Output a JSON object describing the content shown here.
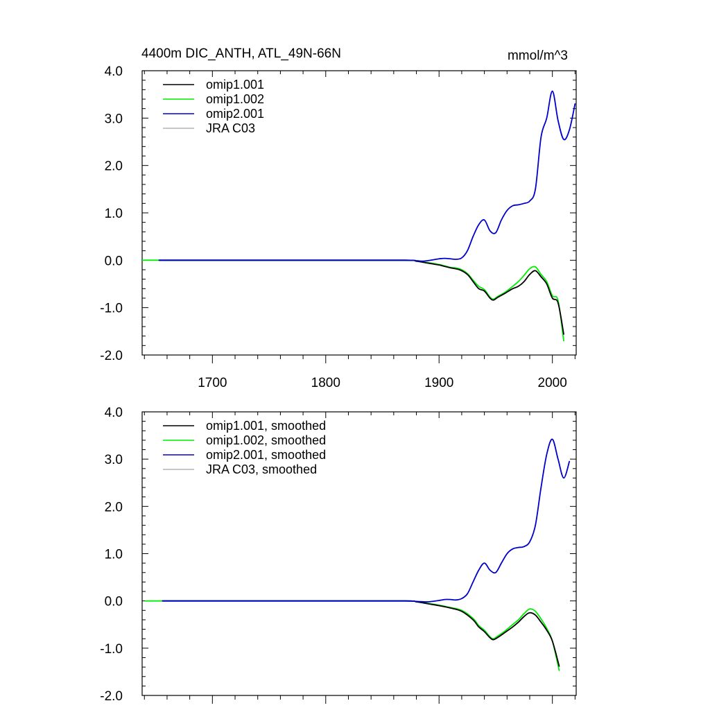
{
  "figure": {
    "title": "4400m DIC_ANTH, ATL_49N-66N",
    "units": "mmol/m^3"
  },
  "chart_data": [
    {
      "type": "line",
      "xlim": [
        1638,
        2021
      ],
      "ylim": [
        -2.0,
        4.0
      ],
      "x_ticks": [
        1700,
        1800,
        1900,
        2000
      ],
      "x_tick_labels": [
        "1700",
        "1800",
        "1900",
        "2000"
      ],
      "y_ticks": [
        4.0,
        3.0,
        2.0,
        1.0,
        0.0,
        -1.0,
        -2.0
      ],
      "y_tick_labels": [
        "4.0",
        "3.0",
        "2.0",
        "1.0",
        "0.0",
        "-1.0",
        "-2.0"
      ],
      "legend_placement": "top-left",
      "grid": false,
      "series": [
        {
          "name": "omip1.001",
          "color": "#000000",
          "x": [
            1653,
            1700,
            1800,
            1870,
            1880,
            1890,
            1900,
            1905,
            1910,
            1918,
            1925,
            1930,
            1935,
            1940,
            1945,
            1948,
            1952,
            1958,
            1965,
            1970,
            1975,
            1980,
            1985,
            1990,
            1995,
            2000,
            2005,
            2010
          ],
          "y": [
            0.0,
            0.0,
            0.0,
            0.0,
            -0.02,
            -0.06,
            -0.1,
            -0.13,
            -0.16,
            -0.2,
            -0.3,
            -0.45,
            -0.6,
            -0.65,
            -0.8,
            -0.84,
            -0.78,
            -0.7,
            -0.6,
            -0.55,
            -0.45,
            -0.3,
            -0.22,
            -0.35,
            -0.5,
            -0.8,
            -0.9,
            -1.56
          ]
        },
        {
          "name": "omip1.002",
          "color": "#00ee00",
          "x": [
            1638,
            1700,
            1800,
            1870,
            1880,
            1890,
            1900,
            1905,
            1910,
            1918,
            1925,
            1930,
            1935,
            1940,
            1945,
            1948,
            1952,
            1958,
            1965,
            1970,
            1975,
            1980,
            1985,
            1990,
            1995,
            2000,
            2005,
            2010
          ],
          "y": [
            0.0,
            0.0,
            0.0,
            0.0,
            -0.02,
            -0.05,
            -0.09,
            -0.12,
            -0.15,
            -0.18,
            -0.28,
            -0.42,
            -0.55,
            -0.62,
            -0.78,
            -0.82,
            -0.76,
            -0.68,
            -0.55,
            -0.45,
            -0.32,
            -0.18,
            -0.14,
            -0.3,
            -0.45,
            -0.75,
            -0.85,
            -1.7
          ]
        },
        {
          "name": "omip2.001",
          "color": "#0000cc",
          "x": [
            1653,
            1700,
            1800,
            1870,
            1880,
            1885,
            1890,
            1900,
            1905,
            1910,
            1915,
            1920,
            1925,
            1930,
            1935,
            1940,
            1945,
            1950,
            1955,
            1960,
            1965,
            1970,
            1975,
            1980,
            1985,
            1990,
            1995,
            2000,
            2005,
            2010,
            2015,
            2020
          ],
          "y": [
            0.0,
            0.0,
            0.0,
            0.0,
            -0.01,
            -0.02,
            -0.01,
            0.03,
            0.04,
            0.03,
            0.02,
            0.05,
            0.2,
            0.5,
            0.75,
            0.85,
            0.62,
            0.58,
            0.85,
            1.05,
            1.15,
            1.17,
            1.2,
            1.25,
            1.5,
            2.6,
            3.0,
            3.57,
            2.95,
            2.55,
            2.75,
            3.3
          ]
        },
        {
          "name": "JRA C03",
          "color": "#b3b3b3",
          "x": [],
          "y": []
        }
      ]
    },
    {
      "type": "line",
      "xlim": [
        1638,
        2021
      ],
      "ylim": [
        -2.0,
        4.0
      ],
      "x_ticks": [
        1700,
        1800,
        1900,
        2000
      ],
      "x_tick_labels": [],
      "y_ticks": [
        4.0,
        3.0,
        2.0,
        1.0,
        0.0,
        -1.0,
        -2.0
      ],
      "y_tick_labels": [
        "4.0",
        "3.0",
        "2.0",
        "1.0",
        "0.0",
        "-1.0",
        "-2.0"
      ],
      "legend_placement": "top-left",
      "grid": false,
      "series": [
        {
          "name": "omip1.001, smoothed",
          "color": "#000000",
          "x": [
            1656,
            1700,
            1800,
            1870,
            1880,
            1890,
            1900,
            1910,
            1920,
            1930,
            1935,
            1940,
            1945,
            1948,
            1952,
            1958,
            1965,
            1970,
            1975,
            1980,
            1985,
            1990,
            1995,
            2000,
            2006
          ],
          "y": [
            0.0,
            0.0,
            0.0,
            0.0,
            -0.02,
            -0.06,
            -0.1,
            -0.15,
            -0.22,
            -0.4,
            -0.55,
            -0.65,
            -0.78,
            -0.82,
            -0.77,
            -0.67,
            -0.55,
            -0.45,
            -0.33,
            -0.25,
            -0.3,
            -0.45,
            -0.62,
            -0.85,
            -1.38
          ]
        },
        {
          "name": "omip1.002, smoothed",
          "color": "#00ee00",
          "x": [
            1641,
            1700,
            1800,
            1870,
            1880,
            1890,
            1900,
            1910,
            1920,
            1930,
            1935,
            1940,
            1945,
            1948,
            1952,
            1958,
            1965,
            1970,
            1975,
            1980,
            1985,
            1990,
            1995,
            2000,
            2006
          ],
          "y": [
            0.0,
            0.0,
            0.0,
            0.0,
            -0.02,
            -0.05,
            -0.09,
            -0.14,
            -0.2,
            -0.37,
            -0.52,
            -0.62,
            -0.76,
            -0.8,
            -0.74,
            -0.64,
            -0.5,
            -0.4,
            -0.27,
            -0.17,
            -0.22,
            -0.38,
            -0.58,
            -0.85,
            -1.47
          ]
        },
        {
          "name": "omip2.001, smoothed",
          "color": "#0000cc",
          "x": [
            1656,
            1700,
            1800,
            1870,
            1880,
            1890,
            1900,
            1905,
            1910,
            1915,
            1920,
            1925,
            1930,
            1935,
            1940,
            1945,
            1950,
            1955,
            1960,
            1965,
            1970,
            1975,
            1980,
            1985,
            1990,
            1995,
            2000,
            2005,
            2010,
            2015
          ],
          "y": [
            0.0,
            0.0,
            0.0,
            0.0,
            -0.01,
            -0.02,
            0.01,
            0.03,
            0.03,
            0.02,
            0.05,
            0.15,
            0.4,
            0.65,
            0.8,
            0.65,
            0.6,
            0.8,
            1.0,
            1.1,
            1.13,
            1.15,
            1.25,
            1.6,
            2.4,
            3.1,
            3.42,
            3.0,
            2.6,
            2.95
          ]
        },
        {
          "name": "JRA C03, smoothed",
          "color": "#b3b3b3",
          "x": [],
          "y": []
        }
      ]
    }
  ]
}
